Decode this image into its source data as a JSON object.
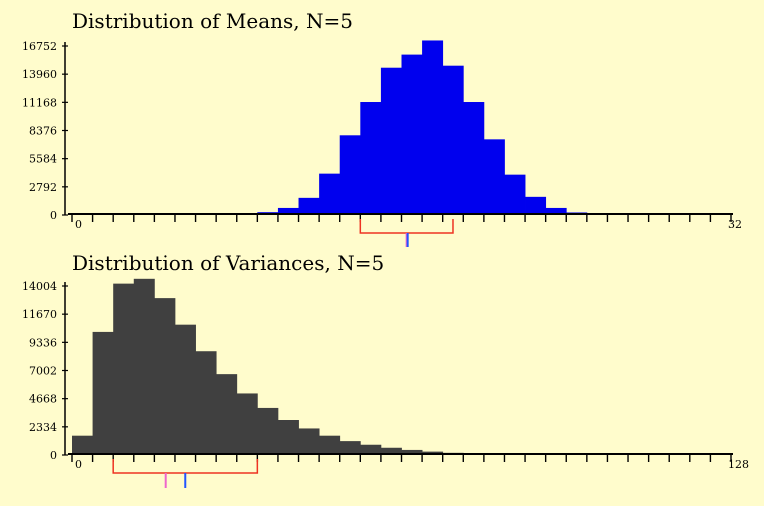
{
  "colors": {
    "background": "#fffccc",
    "means_bars": "#0000ee",
    "variances_bars": "#404040",
    "bracket": "#ee3322",
    "marker_blue": "#2255ff",
    "marker_pink": "#ee66cc"
  },
  "chart_data": [
    {
      "type": "bar",
      "title": "Distribution of Means, N=5",
      "xlabel": "",
      "ylabel": "",
      "xlim": [
        0,
        32
      ],
      "ylim": [
        0,
        16752
      ],
      "yticks": [
        0,
        2792,
        5584,
        8376,
        11168,
        13960,
        16752
      ],
      "ytick_labels": [
        "0",
        "2792",
        "5584",
        "8376",
        "11168",
        "13960",
        "16752"
      ],
      "xtick_labels": {
        "min": "0",
        "max": "32"
      },
      "x_tick_step": 1,
      "bin_width": 1,
      "bins_start": [
        8,
        9,
        10,
        11,
        12,
        13,
        14,
        15,
        16,
        17,
        18,
        19,
        20,
        21,
        22,
        23,
        24
      ],
      "values": [
        120,
        280,
        700,
        1700,
        4100,
        7900,
        11200,
        14600,
        15900,
        17300,
        14800,
        11200,
        7500,
        4000,
        1800,
        700,
        250
      ],
      "bracket": {
        "from": 14,
        "to": 18.5
      },
      "markers": [
        {
          "x": 16.25,
          "color": "#ee66cc"
        },
        {
          "x": 16.3,
          "color": "#2255ff"
        }
      ],
      "grid": false
    },
    {
      "type": "bar",
      "title": "Distribution of Variances, N=5",
      "xlabel": "",
      "ylabel": "",
      "xlim": [
        0,
        128
      ],
      "ylim": [
        0,
        14004
      ],
      "yticks": [
        0,
        2334,
        4668,
        7002,
        9336,
        11670,
        14004
      ],
      "ytick_labels": [
        "0",
        "2334",
        "4668",
        "7002",
        "9336",
        "11670",
        "14004"
      ],
      "xtick_labels": {
        "min": "0",
        "max": "128"
      },
      "x_tick_step": 4,
      "bin_width": 4,
      "bins_start": [
        0,
        4,
        8,
        12,
        16,
        20,
        24,
        28,
        32,
        36,
        40,
        44,
        48,
        52,
        56,
        60,
        64,
        68,
        72,
        76,
        80,
        84
      ],
      "values": [
        1600,
        10200,
        14200,
        14600,
        13000,
        10800,
        8600,
        6700,
        5100,
        3900,
        2900,
        2200,
        1600,
        1150,
        850,
        600,
        420,
        280,
        180,
        110,
        60,
        30
      ],
      "bracket": {
        "from": 8,
        "to": 36
      },
      "markers": [
        {
          "x": 18.2,
          "color": "#ee66cc"
        },
        {
          "x": 22,
          "color": "#2255ff"
        }
      ],
      "grid": false
    }
  ]
}
